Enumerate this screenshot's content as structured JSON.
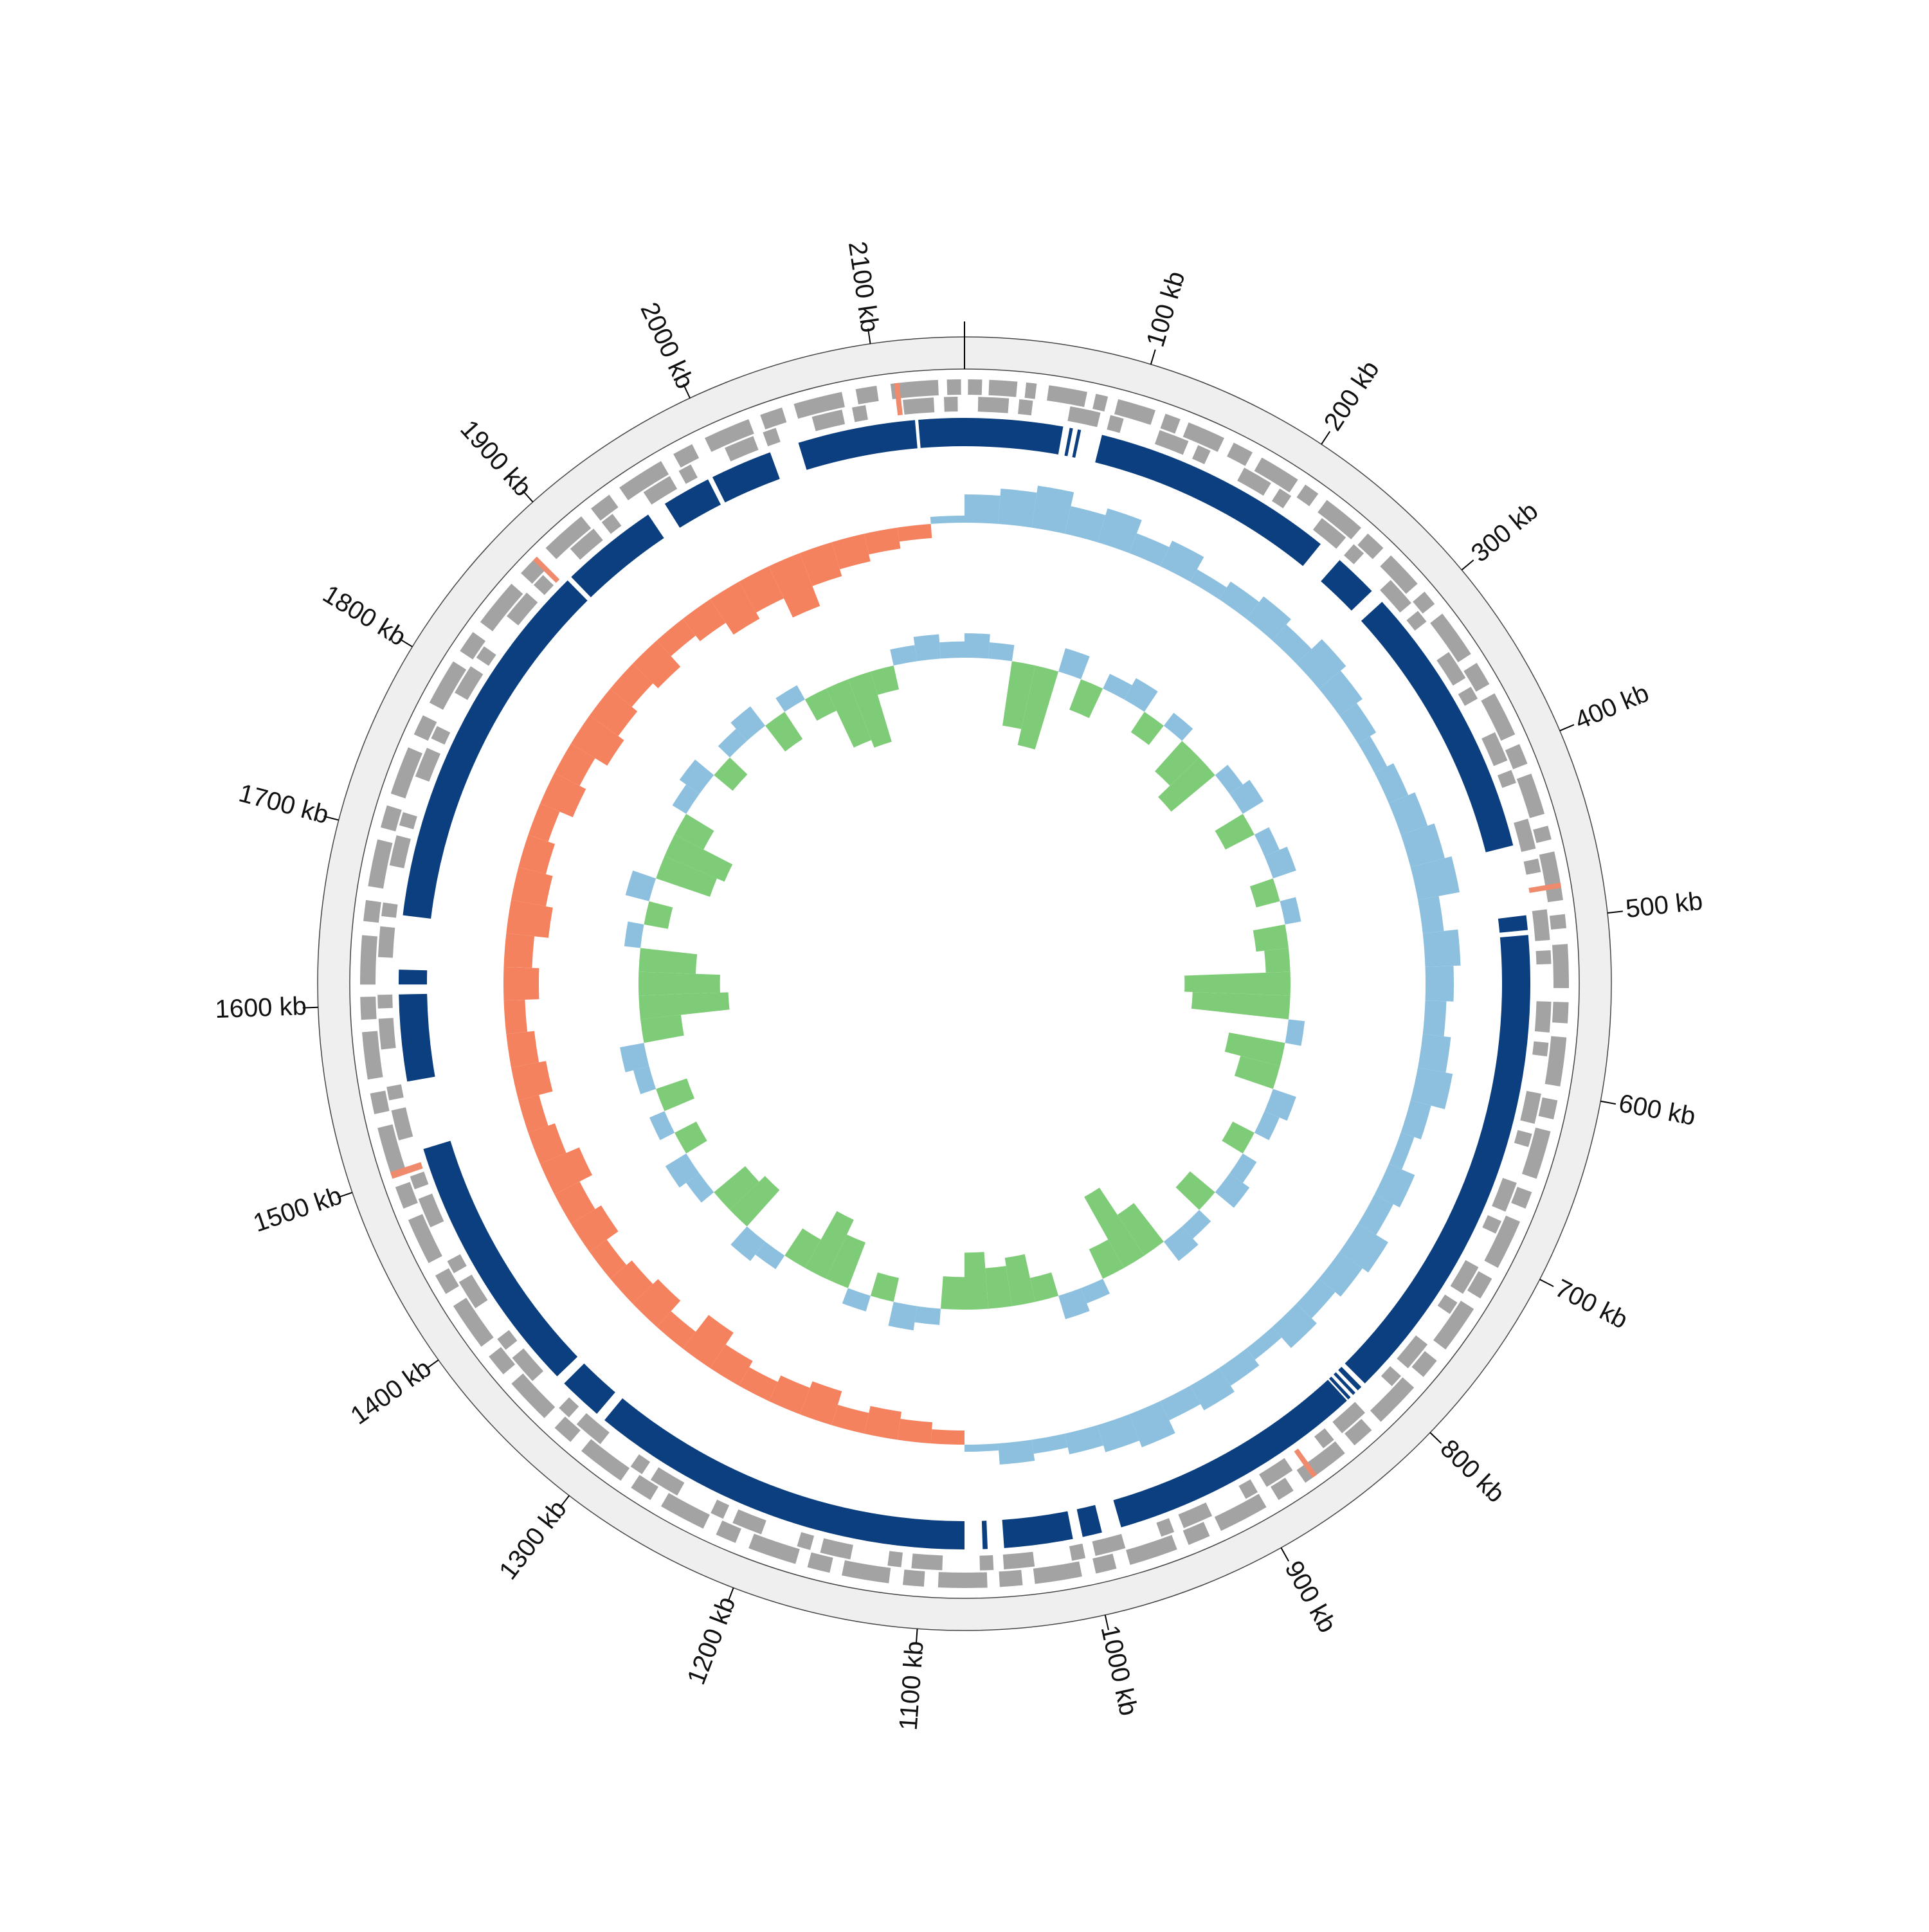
{
  "chart_data": {
    "type": "circular-genome",
    "xlim": [
      0,
      2150
    ],
    "xticks": [
      {
        "value": 100,
        "label": "100 kb"
      },
      {
        "value": 200,
        "label": "200 kb"
      },
      {
        "value": 300,
        "label": "300 kb"
      },
      {
        "value": 400,
        "label": "400 kb"
      },
      {
        "value": 500,
        "label": "500 kb"
      },
      {
        "value": 600,
        "label": "600 kb"
      },
      {
        "value": 700,
        "label": "700 kb"
      },
      {
        "value": 800,
        "label": "800 kb"
      },
      {
        "value": 900,
        "label": "900 kb"
      },
      {
        "value": 1000,
        "label": "1000 kb"
      },
      {
        "value": 1100,
        "label": "1100 kb"
      },
      {
        "value": 1200,
        "label": "1200 kb"
      },
      {
        "value": 1300,
        "label": "1300 kb"
      },
      {
        "value": 1400,
        "label": "1400 kb"
      },
      {
        "value": 1500,
        "label": "1500 kb"
      },
      {
        "value": 1600,
        "label": "1600 kb"
      },
      {
        "value": 1700,
        "label": "1700 kb"
      },
      {
        "value": 1800,
        "label": "1800 kb"
      },
      {
        "value": 1900,
        "label": "1900 kb"
      },
      {
        "value": 2000,
        "label": "2000 kb"
      },
      {
        "value": 2100,
        "label": "2100 kb"
      }
    ],
    "ring_color": "#efefef",
    "gene_color": "#a3a3a3",
    "genes_forward": [
      [
        2,
        10
      ],
      [
        14,
        30
      ],
      [
        35,
        41
      ],
      [
        48,
        70
      ],
      [
        75,
        82
      ],
      [
        88,
        110
      ],
      [
        116,
        125
      ],
      [
        130,
        152
      ],
      [
        158,
        170
      ],
      [
        176,
        200
      ],
      [
        205,
        214
      ],
      [
        220,
        245
      ],
      [
        250,
        262
      ],
      [
        268,
        290
      ],
      [
        296,
        305
      ],
      [
        312,
        340
      ],
      [
        346,
        360
      ],
      [
        366,
        392
      ],
      [
        398,
        410
      ],
      [
        416,
        440
      ],
      [
        447,
        455
      ],
      [
        462,
        490
      ],
      [
        498,
        506
      ],
      [
        515,
        540
      ],
      [
        548,
        560
      ],
      [
        568,
        596
      ],
      [
        604,
        615
      ],
      [
        622,
        650
      ],
      [
        658,
        668
      ],
      [
        676,
        705
      ],
      [
        712,
        725
      ],
      [
        732,
        760
      ],
      [
        768,
        780
      ],
      [
        788,
        815
      ],
      [
        822,
        835
      ],
      [
        842,
        870
      ],
      [
        878,
        888
      ],
      [
        896,
        925
      ],
      [
        932,
        945
      ],
      [
        952,
        980
      ],
      [
        988,
        1000
      ],
      [
        1008,
        1035
      ],
      [
        1042,
        1055
      ],
      [
        1062,
        1090
      ],
      [
        1098,
        1110
      ],
      [
        1118,
        1145
      ],
      [
        1152,
        1165
      ],
      [
        1172,
        1200
      ],
      [
        1208,
        1220
      ],
      [
        1228,
        1255
      ],
      [
        1262,
        1275
      ],
      [
        1282,
        1310
      ],
      [
        1318,
        1330
      ],
      [
        1338,
        1365
      ],
      [
        1372,
        1385
      ],
      [
        1392,
        1420
      ],
      [
        1428,
        1440
      ],
      [
        1448,
        1475
      ],
      [
        1482,
        1495
      ],
      [
        1502,
        1530
      ],
      [
        1538,
        1550
      ],
      [
        1558,
        1585
      ],
      [
        1592,
        1605
      ],
      [
        1612,
        1640
      ],
      [
        1648,
        1660
      ],
      [
        1668,
        1695
      ],
      [
        1702,
        1715
      ],
      [
        1722,
        1750
      ],
      [
        1758,
        1770
      ],
      [
        1778,
        1805
      ],
      [
        1812,
        1825
      ],
      [
        1832,
        1860
      ],
      [
        1868,
        1880
      ],
      [
        1888,
        1915
      ],
      [
        1922,
        1935
      ],
      [
        1942,
        1970
      ],
      [
        1978,
        1990
      ],
      [
        1998,
        2025
      ],
      [
        2032,
        2045
      ],
      [
        2052,
        2080
      ],
      [
        2088,
        2100
      ],
      [
        2108,
        2135
      ],
      [
        2140,
        2148
      ]
    ],
    "genes_reverse": [
      [
        8,
        26
      ],
      [
        32,
        40
      ],
      [
        62,
        80
      ],
      [
        86,
        94
      ],
      [
        116,
        134
      ],
      [
        140,
        148
      ],
      [
        170,
        188
      ],
      [
        194,
        202
      ],
      [
        224,
        242
      ],
      [
        248,
        256
      ],
      [
        278,
        296
      ],
      [
        302,
        310
      ],
      [
        332,
        350
      ],
      [
        356,
        364
      ],
      [
        386,
        404
      ],
      [
        410,
        418
      ],
      [
        440,
        458
      ],
      [
        464,
        472
      ],
      [
        494,
        512
      ],
      [
        518,
        526
      ],
      [
        548,
        566
      ],
      [
        572,
        580
      ],
      [
        602,
        620
      ],
      [
        626,
        634
      ],
      [
        656,
        674
      ],
      [
        680,
        688
      ],
      [
        710,
        728
      ],
      [
        734,
        742
      ],
      [
        764,
        782
      ],
      [
        788,
        796
      ],
      [
        818,
        836
      ],
      [
        842,
        850
      ],
      [
        872,
        890
      ],
      [
        896,
        904
      ],
      [
        926,
        944
      ],
      [
        950,
        958
      ],
      [
        980,
        998
      ],
      [
        1004,
        1012
      ],
      [
        1034,
        1052
      ],
      [
        1058,
        1066
      ],
      [
        1088,
        1106
      ],
      [
        1112,
        1120
      ],
      [
        1142,
        1160
      ],
      [
        1166,
        1174
      ],
      [
        1196,
        1214
      ],
      [
        1220,
        1228
      ],
      [
        1250,
        1268
      ],
      [
        1274,
        1282
      ],
      [
        1304,
        1322
      ],
      [
        1328,
        1336
      ],
      [
        1358,
        1376
      ],
      [
        1382,
        1390
      ],
      [
        1412,
        1430
      ],
      [
        1436,
        1444
      ],
      [
        1466,
        1484
      ],
      [
        1490,
        1498
      ],
      [
        1520,
        1538
      ],
      [
        1544,
        1552
      ],
      [
        1574,
        1592
      ],
      [
        1598,
        1606
      ],
      [
        1628,
        1646
      ],
      [
        1652,
        1660
      ],
      [
        1682,
        1700
      ],
      [
        1706,
        1714
      ],
      [
        1736,
        1754
      ],
      [
        1760,
        1768
      ],
      [
        1790,
        1808
      ],
      [
        1814,
        1822
      ],
      [
        1844,
        1862
      ],
      [
        1868,
        1876
      ],
      [
        1898,
        1916
      ],
      [
        1922,
        1930
      ],
      [
        1952,
        1970
      ],
      [
        1976,
        1984
      ],
      [
        2006,
        2024
      ],
      [
        2030,
        2038
      ],
      [
        2060,
        2078
      ],
      [
        2084,
        2092
      ],
      [
        2114,
        2132
      ],
      [
        2138,
        2146
      ]
    ],
    "rna_color": "#f08a6c",
    "rna": [
      [
        480,
        483
      ],
      [
        862,
        865
      ],
      [
        1500,
        1504
      ],
      [
        1878,
        1881
      ],
      [
        2110,
        2113
      ]
    ],
    "block_color": "#0b3f80",
    "blocks": [
      [
        0,
        60
      ],
      [
        64,
        66
      ],
      [
        69,
        71
      ],
      [
        84,
        233
      ],
      [
        248,
        275
      ],
      [
        284,
        453
      ],
      [
        496,
        505
      ],
      [
        508,
        806
      ],
      [
        809,
        812
      ],
      [
        814,
        816
      ],
      [
        818,
        820
      ],
      [
        821,
        979
      ],
      [
        991,
        1003
      ],
      [
        1009,
        1051
      ],
      [
        1061,
        1064
      ],
      [
        1075,
        1311
      ],
      [
        1317,
        1344
      ],
      [
        1350,
        1511
      ],
      [
        1553,
        1606
      ],
      [
        1612,
        1621
      ],
      [
        1654,
        1884
      ],
      [
        1887,
        1947
      ],
      [
        1959,
        1989
      ],
      [
        1992,
        2030
      ],
      [
        2048,
        2120
      ],
      [
        2122,
        2150
      ]
    ],
    "x": [
      0,
      25,
      50,
      75,
      100,
      125,
      150,
      175,
      200,
      225,
      250,
      275,
      300,
      325,
      350,
      375,
      400,
      425,
      450,
      475,
      500,
      525,
      550,
      575,
      600,
      625,
      650,
      675,
      700,
      725,
      750,
      775,
      800,
      825,
      850,
      875,
      900,
      925,
      950,
      975,
      1000,
      1025,
      1050,
      1075,
      1100,
      1125,
      1150,
      1175,
      1200,
      1225,
      1250,
      1275,
      1300,
      1325,
      1350,
      1375,
      1400,
      1425,
      1450,
      1475,
      1500,
      1525,
      1550,
      1575,
      1600,
      1625,
      1650,
      1675,
      1700,
      1725,
      1750,
      1775,
      1800,
      1825,
      1850,
      1875,
      1900,
      1925,
      1950,
      1975,
      2000,
      2025,
      2050,
      2075,
      2100,
      2125
    ],
    "gc_skew": {
      "ylim": [
        -0.1,
        0.1
      ],
      "colors": [
        "#f4825f",
        "#8dc0df"
      ],
      "values": [
        0.04,
        0.05,
        0.06,
        0.04,
        0.05,
        0.03,
        0.04,
        0.02,
        0.03,
        0.04,
        0.03,
        0.05,
        0.04,
        0.03,
        0.02,
        0.03,
        0.04,
        0.05,
        0.06,
        0.03,
        0.05,
        0.04,
        0.03,
        0.04,
        0.05,
        0.03,
        0.02,
        0.04,
        0.03,
        0.05,
        0.04,
        0.03,
        0.04,
        0.02,
        0.03,
        0.04,
        0.03,
        0.05,
        0.04,
        0.03,
        0.02,
        0.03,
        0.01,
        -0.02,
        -0.03,
        -0.04,
        -0.03,
        -0.05,
        -0.04,
        -0.03,
        -0.04,
        -0.06,
        -0.03,
        -0.05,
        -0.04,
        -0.03,
        -0.05,
        -0.04,
        -0.06,
        -0.04,
        -0.03,
        -0.05,
        -0.04,
        -0.03,
        -0.05,
        -0.04,
        -0.06,
        -0.05,
        -0.04,
        -0.03,
        -0.05,
        -0.04,
        -0.06,
        -0.05,
        -0.04,
        -0.05,
        -0.03,
        -0.04,
        -0.06,
        -0.05,
        -0.08,
        -0.05,
        -0.04,
        -0.03,
        -0.02,
        0.01
      ]
    },
    "gc_content": {
      "ylim": [
        -15,
        15
      ],
      "colors": [
        "#7fcc78",
        "#8dc0df"
      ],
      "values": [
        3,
        2,
        -8,
        -10,
        3,
        -4,
        2,
        3,
        -3,
        2,
        -5,
        -7,
        2,
        3,
        -4,
        2,
        3,
        -3,
        2,
        -4,
        -3,
        -13,
        -12,
        2,
        -7,
        -5,
        3,
        2,
        -3,
        2,
        3,
        -4,
        2,
        3,
        -6,
        -10,
        -4,
        2,
        3,
        -3,
        -6,
        -5,
        -7,
        -4,
        2,
        3,
        -3,
        2,
        -6,
        -8,
        -4,
        2,
        3,
        -6,
        -5,
        2,
        3,
        -3,
        2,
        -4,
        2,
        3,
        -5,
        -11,
        -10,
        -7,
        2,
        -3,
        3,
        -7,
        -8,
        -4,
        2,
        3,
        -3,
        2,
        3,
        -4,
        2,
        -3,
        -8,
        -9,
        -3,
        2,
        3,
        2
      ]
    }
  }
}
